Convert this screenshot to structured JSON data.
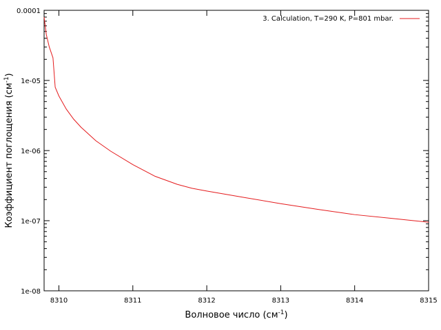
{
  "chart_data": {
    "type": "line",
    "title": "",
    "xlabel": "Волновое число (см",
    "xlabel_sup": "-1",
    "xlabel_end": ")",
    "ylabel": "Коэффициент поглощения (см",
    "ylabel_sup": "-1",
    "ylabel_end": ")",
    "xlim": [
      8309.8,
      8315
    ],
    "ylim": [
      1e-08,
      0.0001
    ],
    "yscale": "log",
    "grid": false,
    "legend_position": "top-right",
    "x_ticks": [
      8310,
      8311,
      8312,
      8313,
      8314,
      8315
    ],
    "x_tick_labels": [
      "8310",
      "8311",
      "8312",
      "8313",
      "8314",
      "8315"
    ],
    "y_ticks": [
      1e-08,
      1e-07,
      1e-06,
      1e-05,
      0.0001
    ],
    "y_tick_labels": [
      "1e-08",
      "1e-07",
      "1e-06",
      "1e-05",
      "0.0001"
    ],
    "series": [
      {
        "name": "3. Calculation, T=290 K, P=801 mbar.",
        "color": "#e41a1c",
        "x": [
          8309.8,
          8309.83,
          8309.87,
          8309.92,
          8309.95,
          8310.0,
          8310.1,
          8310.2,
          8310.3,
          8310.5,
          8310.7,
          8311.0,
          8311.3,
          8311.6,
          8311.8,
          8312.0,
          8312.5,
          8313.0,
          8313.5,
          8314.0,
          8314.5,
          8315.0
        ],
        "y": [
          8e-05,
          4.5e-05,
          3e-05,
          2.1e-05,
          8e-06,
          6e-06,
          3.9e-06,
          2.8e-06,
          2.15e-06,
          1.38e-06,
          9.8e-07,
          6.3e-07,
          4.3e-07,
          3.3e-07,
          2.9e-07,
          2.65e-07,
          2.15e-07,
          1.75e-07,
          1.45e-07,
          1.22e-07,
          1.08e-07,
          9.5e-08
        ]
      }
    ]
  }
}
